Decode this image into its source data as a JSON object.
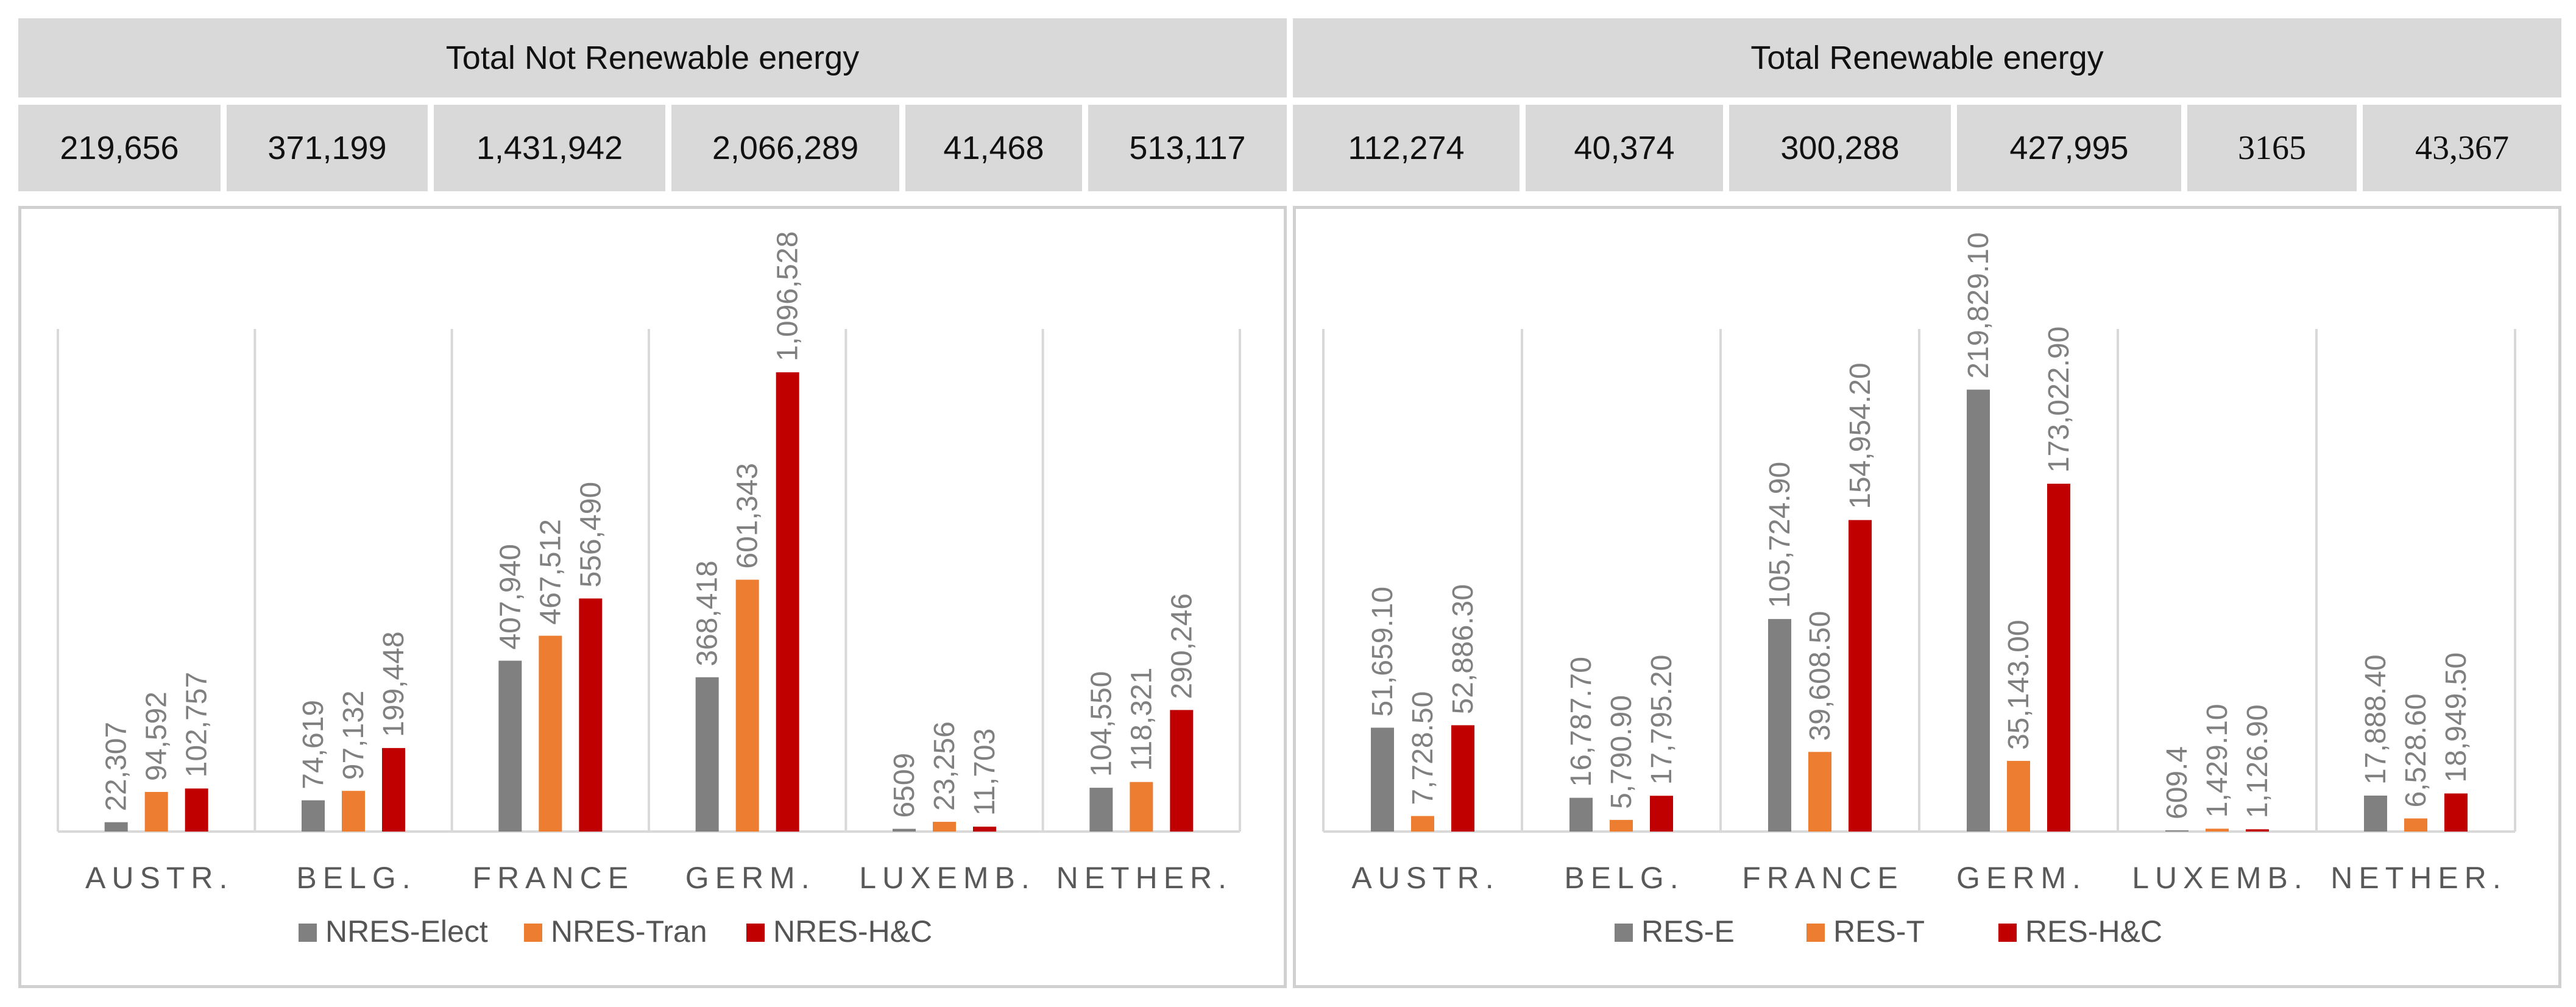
{
  "header": {
    "left_title": "Total Not Renewable energy",
    "right_title": "Total Renewable energy",
    "left_values": [
      "219,656",
      "371,199",
      "1,431,942",
      "2,066,289",
      "41,468",
      "513,117"
    ],
    "right_values": [
      "112,274",
      "40,374",
      "300,288",
      "427,995",
      "3165",
      "43,367"
    ]
  },
  "colors": {
    "elect": "#808080",
    "tran": "#ed7d31",
    "hc": "#c00000",
    "header_bg": "#d9d9d9",
    "grid": "#d9d9d9"
  },
  "chart_data": [
    {
      "type": "bar",
      "title": "Total Not Renewable energy",
      "categories": [
        "AUSTR.",
        "BELG.",
        "FRANCE",
        "GERM.",
        "LUXEMB.",
        "NETHER."
      ],
      "series": [
        {
          "name": "NRES-Elect",
          "values": [
            22307,
            74619,
            407940,
            368418,
            6509,
            104550
          ],
          "labels": [
            "22,307",
            "74,619",
            "407,940",
            "368,418",
            "6509",
            "104,550"
          ]
        },
        {
          "name": "NRES-Tran",
          "values": [
            94592,
            97132,
            467512,
            601343,
            23256,
            118321
          ],
          "labels": [
            "94,592",
            "97,132",
            "467,512",
            "601,343",
            "23,256",
            "118,321"
          ]
        },
        {
          "name": "NRES-H&C",
          "values": [
            102757,
            199448,
            556490,
            1096528,
            11703,
            290246
          ],
          "labels": [
            "102,757",
            "199,448",
            "556,490",
            "1,096,528",
            "11,703",
            "290,246"
          ]
        }
      ],
      "ylim": [
        0,
        1200000
      ],
      "legend": "bottom"
    },
    {
      "type": "bar",
      "title": "Total Renewable energy",
      "categories": [
        "AUSTR.",
        "BELG.",
        "FRANCE",
        "GERM.",
        "LUXEMB.",
        "NETHER."
      ],
      "series": [
        {
          "name": "RES-E",
          "values": [
            51659.1,
            16787.7,
            105724.9,
            219829.1,
            609.4,
            17888.4
          ],
          "labels": [
            "51,659.10",
            "16,787.70",
            "105,724.90",
            "219,829.10",
            "609.4",
            "17,888.40"
          ]
        },
        {
          "name": "RES-T",
          "values": [
            7728.5,
            5790.9,
            39608.5,
            35143.0,
            1429.1,
            6528.6
          ],
          "labels": [
            "7,728.50",
            "5,790.90",
            "39,608.50",
            "35,143.00",
            "1,429.10",
            "6,528.60"
          ]
        },
        {
          "name": "RES-H&C",
          "values": [
            52886.3,
            17795.2,
            154954.2,
            173022.9,
            1126.9,
            18949.5
          ],
          "labels": [
            "52,886.30",
            "17,795.20",
            "154,954.20",
            "173,022.90",
            "1,126.90",
            "18,949.50"
          ]
        }
      ],
      "ylim": [
        0,
        250000
      ],
      "legend": "bottom"
    }
  ]
}
